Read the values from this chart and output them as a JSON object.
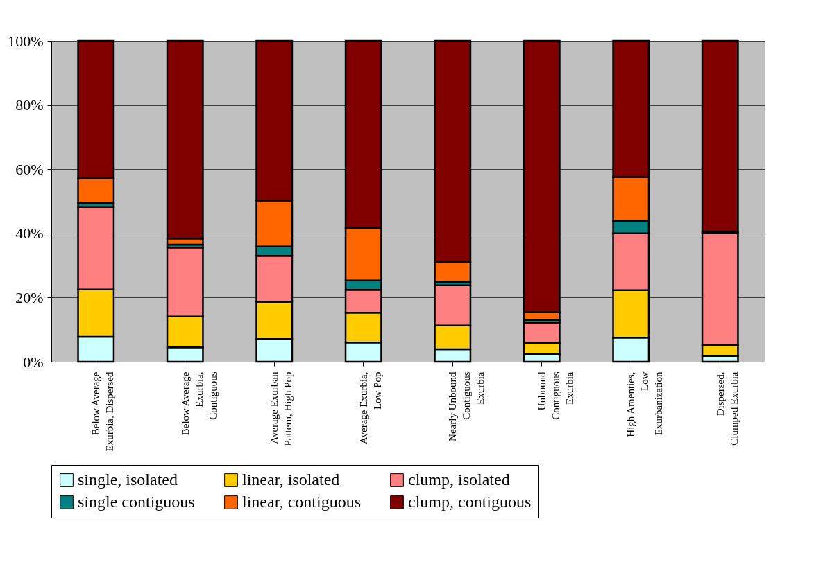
{
  "chart_data": {
    "type": "bar",
    "stacked": true,
    "categories": [
      "Below Average\nExurbia, Dispersed",
      "Below Average\nExurbia,\nContiguous",
      "Average Exurban\nPattern, High Pop",
      "Average Exurbia,\nLow Pop",
      "Nearly Unbound\nContiguous\nExurbia",
      "Unbound\nContiguous\nExurbia",
      "High Amenties,\nLow\nExurbanization",
      "Dispersed,\nClumped Exurbia"
    ],
    "series": [
      {
        "name": "single, isolated",
        "color": "#ccffff",
        "values": [
          7.8,
          4.5,
          7.1,
          6.0,
          3.9,
          2.3,
          7.5,
          1.8
        ]
      },
      {
        "name": "linear, isolated",
        "color": "#ffcc00",
        "values": [
          14.7,
          9.6,
          11.6,
          9.3,
          7.4,
          3.6,
          14.8,
          3.4
        ]
      },
      {
        "name": "clump, isolated",
        "color": "#ff8080",
        "values": [
          25.7,
          21.5,
          14.3,
          7.1,
          12.5,
          6.3,
          17.7,
          34.8
        ]
      },
      {
        "name": "single contiguous",
        "color": "#008080",
        "values": [
          1.2,
          0.9,
          2.9,
          2.9,
          1.1,
          0.8,
          3.9,
          null
        ]
      },
      {
        "name": "linear, contiguous",
        "color": "#ff6600",
        "values": [
          7.7,
          1.9,
          14.3,
          16.4,
          6.2,
          2.4,
          13.6,
          0.5
        ]
      },
      {
        "name": "clump, contiguous",
        "color": "#800000",
        "values": [
          42.9,
          61.6,
          49.8,
          58.3,
          68.9,
          84.6,
          42.5,
          59.5
        ]
      }
    ],
    "ylim": [
      0,
      100
    ],
    "yticks": [
      {
        "value": 0,
        "label": "0%"
      },
      {
        "value": 20,
        "label": "20%"
      },
      {
        "value": 40,
        "label": "40%"
      },
      {
        "value": 60,
        "label": "60%"
      },
      {
        "value": 80,
        "label": "80%"
      },
      {
        "value": 100,
        "label": "100%"
      }
    ],
    "grid": "y",
    "legend": "bottom"
  }
}
